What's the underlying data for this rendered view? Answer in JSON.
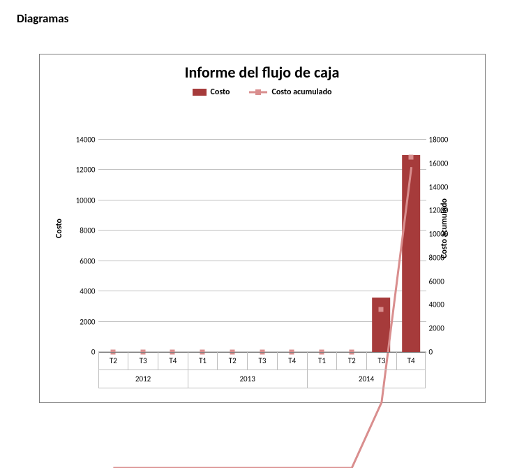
{
  "page_heading": "Diagramas",
  "chart": {
    "type": "bar+line",
    "title": "Informe del flujo de caja",
    "title_fontsize": 22,
    "legend": {
      "series_bar_label": "Costo",
      "series_line_label": "Costo acumulado",
      "fontsize": 12
    },
    "colors": {
      "bar": "#a63b3b",
      "line": "#d98e8e",
      "marker": "#d98e8e",
      "grid": "#bfbfbf",
      "frame_border": "#7f7f7f",
      "background": "#ffffff",
      "text": "#000000"
    },
    "y_left": {
      "label": "Costo",
      "min": 0,
      "max": 14000,
      "step": 2000,
      "ticks": [
        0,
        2000,
        4000,
        6000,
        8000,
        10000,
        12000,
        14000
      ],
      "fontsize": 11
    },
    "y_right": {
      "label": "Costo acumulado",
      "min": 0,
      "max": 18000,
      "step": 2000,
      "ticks": [
        0,
        2000,
        4000,
        6000,
        8000,
        10000,
        12000,
        14000,
        16000,
        18000
      ],
      "fontsize": 11
    },
    "x": {
      "quarters": [
        "T2",
        "T3",
        "T4",
        "T1",
        "T2",
        "T3",
        "T4",
        "T1",
        "T2",
        "T3",
        "T4"
      ],
      "groups": [
        {
          "label": "2012",
          "span": 3
        },
        {
          "label": "2013",
          "span": 4
        },
        {
          "label": "2014",
          "span": 4
        }
      ],
      "fontsize": 11
    },
    "series_bar": {
      "name": "Costo",
      "values": [
        0,
        0,
        0,
        0,
        0,
        0,
        0,
        0,
        0,
        3600,
        13000
      ],
      "bar_width": 0.6
    },
    "series_line": {
      "name": "Costo acumulado",
      "values": [
        0,
        0,
        0,
        0,
        0,
        0,
        0,
        0,
        0,
        3600,
        16500
      ],
      "line_width": 3,
      "marker_size": 7
    }
  }
}
